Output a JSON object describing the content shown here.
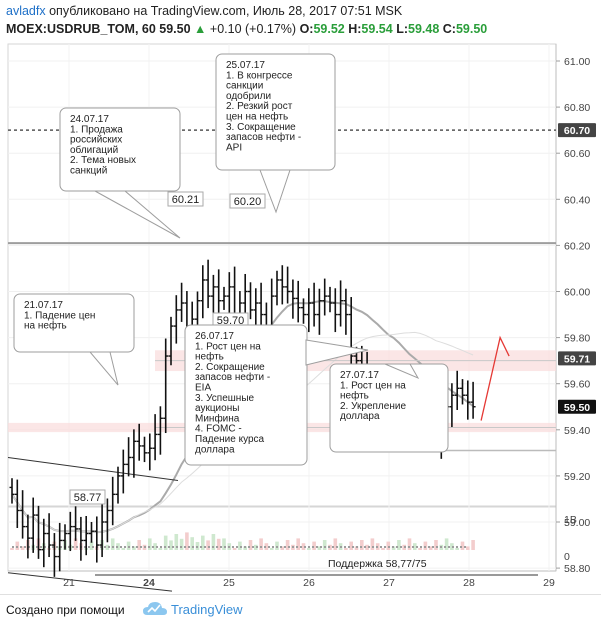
{
  "header": {
    "author": "avladfx",
    "published_text": "опубликовано на",
    "site": "TradingView.com",
    "date_text": ", Июль 28, 2017 07:51 MSK",
    "symbol": "MOEX:USDRUB_TOM, 60",
    "last": "59.50",
    "change": "+0.10 (+0.17%)",
    "o_label": "O:",
    "o_value": "59.52",
    "h_label": "H:",
    "h_value": "59.54",
    "l_label": "L:",
    "l_value": "59.48",
    "c_label": "C:",
    "c_value": "59.50"
  },
  "chart_data": {
    "type": "candlestick",
    "x_axis": {
      "ticks": [
        "21",
        "24",
        "25",
        "26",
        "27",
        "28",
        "29"
      ]
    },
    "y_axis": {
      "ticks": [
        "58.80",
        "59.00",
        "59.20",
        "59.40",
        "59.60",
        "59.80",
        "60.00",
        "60.20",
        "60.40",
        "60.60",
        "60.80",
        "61.00"
      ],
      "ylim": [
        58.66,
        61.12
      ]
    },
    "price_labels": [
      {
        "text": "60.70",
        "value": 60.7,
        "style": "dark"
      },
      {
        "text": "59.71",
        "value": 59.71,
        "style": "dark"
      },
      {
        "text": "59.50",
        "value": 59.5,
        "style": "black"
      }
    ],
    "volume_axis": {
      "ticks": [
        "1B",
        "0"
      ]
    },
    "series": [
      {
        "name": "",
        "values": [
          59.12,
          59.05,
          58.98,
          58.93,
          59.03,
          58.88,
          58.95,
          58.9,
          58.85,
          58.92,
          58.95,
          58.98,
          58.97,
          58.92,
          58.95,
          58.96,
          58.9,
          59.0,
          59.05,
          59.12,
          59.2,
          59.25,
          59.28,
          59.35,
          59.33,
          59.3,
          59.32,
          59.38,
          59.45,
          59.72,
          59.85,
          59.92,
          59.95,
          59.78,
          59.88,
          59.96,
          60.05,
          59.98,
          60.02,
          59.96,
          59.98,
          60.02,
          59.88,
          59.95,
          60.0,
          59.92,
          59.95,
          59.9,
          59.75,
          59.98,
          60.05,
          60.02,
          60.0,
          59.97,
          59.93,
          59.9,
          59.95,
          59.9,
          59.96,
          59.98,
          59.95,
          59.9,
          59.96,
          59.9,
          59.72,
          59.7,
          59.65,
          59.6,
          59.5,
          59.45,
          59.4,
          59.38,
          59.42,
          59.48,
          59.45,
          59.42,
          59.55,
          59.5,
          59.45,
          59.4,
          59.35,
          59.45,
          59.5,
          59.55,
          59.58,
          59.55,
          59.52,
          59.5
        ]
      }
    ],
    "levels": [
      {
        "value": 60.7,
        "style": "dashed"
      },
      {
        "value": 60.21,
        "label": "60.21",
        "style": "solid"
      },
      {
        "value": 59.7,
        "label": "59.70",
        "style": "zone"
      },
      {
        "value": 59.41,
        "style": "zone"
      },
      {
        "value": 58.77,
        "label": "Поддержка 58,77/75",
        "style": "solid"
      }
    ],
    "point_labels": [
      {
        "text": "60.21",
        "value": 60.21
      },
      {
        "text": "60.20",
        "value": 60.2
      },
      {
        "text": "59.70",
        "value": 59.7
      },
      {
        "text": "58.77",
        "value": 58.77
      }
    ],
    "annotations": [
      {
        "lines": [
          "21.07.17",
          "1. Падение цен",
          "на нефть"
        ]
      },
      {
        "lines": [
          "24.07.17",
          "1. Продажа",
          "российских",
          "облигаций",
          "2. Тема новых",
          "санкций"
        ]
      },
      {
        "lines": [
          "25.07.17",
          "1. В конгрессе",
          "санкции",
          "одобрили",
          "2. Резкий рост",
          "цен на нефть",
          "3. Сокращение",
          "запасов нефти -",
          "API"
        ]
      },
      {
        "lines": [
          "26.07.17",
          "1. Рост цен на",
          "нефть",
          "2. Сокращение",
          "запасов нефти  -",
          "EIA",
          "3. Успешные",
          "аукционы",
          "Минфина",
          "4. FOMC -",
          "Падение курса",
          "доллара"
        ]
      },
      {
        "lines": [
          "27.07.17",
          "1. Рост цен на",
          "нефть",
          "2. Укрепление",
          "доллара"
        ]
      }
    ]
  },
  "footer": {
    "created_text": "Создано при помощи",
    "brand": "TradingView",
    "logo_icon": "tradingview-cloud-icon"
  }
}
